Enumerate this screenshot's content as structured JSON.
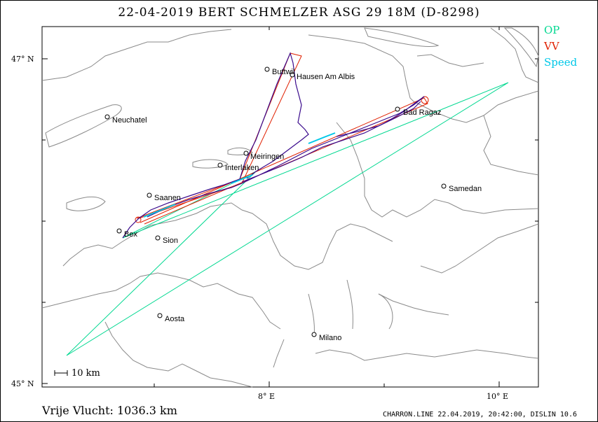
{
  "title": "22-04-2019   BERT SCHMELZER   ASG 29 18M (D-8298)",
  "legend": {
    "op": {
      "label": "OP",
      "color": "#00d890"
    },
    "vv": {
      "label": "VV",
      "color": "#e02000"
    },
    "speed": {
      "label": "Speed",
      "color": "#00c8e8"
    }
  },
  "track_color": "#3a0a8c",
  "axes": {
    "lat_47": "47° N",
    "lat_45": "45° N",
    "lon_8": "8° E",
    "lon_10": "10° E"
  },
  "cities": [
    {
      "name": "Buttwil"
    },
    {
      "name": "Hausen Am Albis"
    },
    {
      "name": "Neuchatel"
    },
    {
      "name": "Bad Ragaz"
    },
    {
      "name": "Meiringen"
    },
    {
      "name": "Interlaken"
    },
    {
      "name": "Saanen"
    },
    {
      "name": "Bex"
    },
    {
      "name": "Sion"
    },
    {
      "name": "Samedan"
    },
    {
      "name": "Aosta"
    },
    {
      "name": "Milano"
    }
  ],
  "scale_label": "10 km",
  "distance_label": "Vrije Vlucht: 1036.3 km",
  "footer": "CHARRON.LINE 22.04.2019, 20:42:00, DISLIN 10.6"
}
